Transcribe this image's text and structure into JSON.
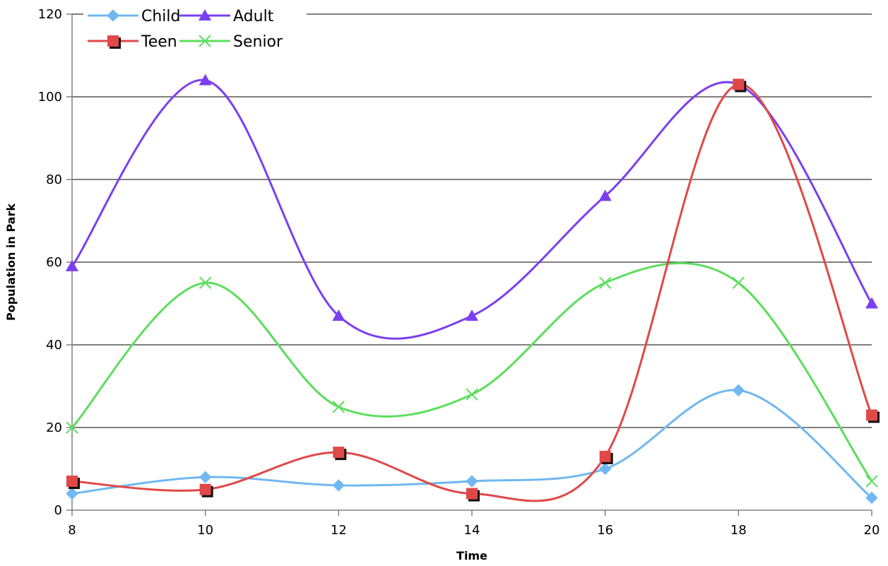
{
  "chart_data": {
    "type": "line",
    "title": "",
    "xlabel": "Time",
    "ylabel": "Population in Park",
    "x": [
      8,
      10,
      12,
      14,
      16,
      18,
      20
    ],
    "xlim": [
      8,
      20
    ],
    "ylim": [
      0,
      120
    ],
    "x_ticks": [
      8,
      10,
      12,
      14,
      16,
      18,
      20
    ],
    "y_ticks": [
      0,
      20,
      40,
      60,
      80,
      100,
      120
    ],
    "grid": "horizontal",
    "smooth": true,
    "legend_position": "top-left",
    "series": [
      {
        "name": "Child",
        "color": "#70b8f0",
        "marker": "diamond",
        "values": [
          4,
          8,
          6,
          7,
          10,
          29,
          3
        ]
      },
      {
        "name": "Teen",
        "color": "#e04848",
        "marker": "square",
        "values": [
          7,
          5,
          14,
          4,
          13,
          103,
          23
        ]
      },
      {
        "name": "Adult",
        "color": "#7b3ff0",
        "marker": "triangle",
        "values": [
          59,
          104,
          47,
          47,
          76,
          103,
          50
        ]
      },
      {
        "name": "Senior",
        "color": "#5cde5c",
        "marker": "x",
        "values": [
          20,
          55,
          25,
          28,
          55,
          55,
          7
        ]
      }
    ]
  }
}
